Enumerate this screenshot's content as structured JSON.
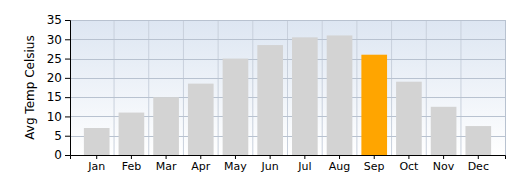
{
  "chart_data": {
    "type": "bar",
    "y_label": "Avg Temp Celsius",
    "categories": [
      "Jan",
      "Feb",
      "Mar",
      "Apr",
      "May",
      "Jun",
      "Jul",
      "Aug",
      "Sep",
      "Oct",
      "Nov",
      "Dec"
    ],
    "values": [
      7,
      11,
      15,
      18.5,
      25,
      28.5,
      30.5,
      31,
      26,
      19,
      12.5,
      7.5
    ],
    "colors": [
      "#d3d3d3",
      "#d3d3d3",
      "#d3d3d3",
      "#d3d3d3",
      "#d3d3d3",
      "#d3d3d3",
      "#d3d3d3",
      "#d3d3d3",
      "#ffa500",
      "#d3d3d3",
      "#d3d3d3",
      "#d3d3d3"
    ],
    "ylim": [
      0,
      35
    ],
    "yticks": [
      0,
      5,
      10,
      15,
      20,
      25,
      30,
      35
    ],
    "grid": true
  }
}
